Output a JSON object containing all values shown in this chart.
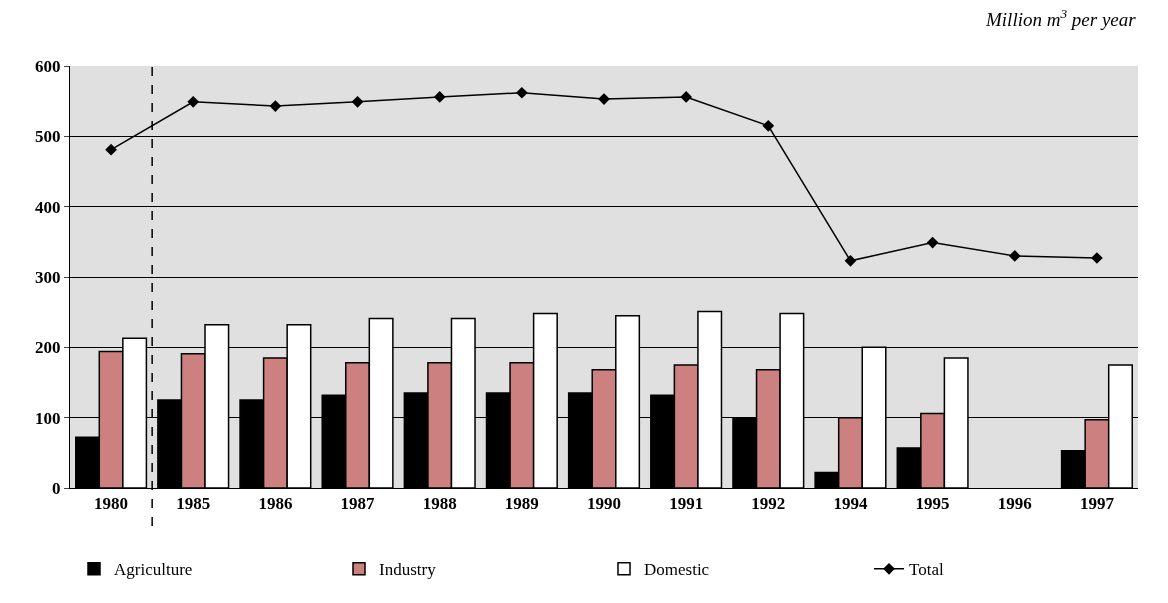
{
  "chart_data": {
    "type": "bar",
    "subtitle": "Million m$^{3}$ per year",
    "categories": [
      "1980",
      "1985",
      "1986",
      "1987",
      "1988",
      "1989",
      "1990",
      "1991",
      "1992",
      "1994",
      "1995",
      "1996",
      "1997"
    ],
    "series": [
      {
        "name": "Agriculture",
        "color": "#000000",
        "values": [
          72,
          125,
          125,
          132,
          135,
          135,
          135,
          132,
          100,
          22,
          57,
          null,
          53
        ]
      },
      {
        "name": "Industry",
        "color": "#cc8080",
        "values": [
          194,
          191,
          185,
          178,
          178,
          178,
          168,
          175,
          168,
          100,
          106,
          null,
          97
        ]
      },
      {
        "name": "Domestic",
        "color": "#ffffff",
        "values": [
          213,
          232,
          232,
          241,
          241,
          248,
          245,
          251,
          248,
          200,
          185,
          null,
          175
        ]
      },
      {
        "name": "Total",
        "type": "line",
        "color": "#000000",
        "marker": "diamond",
        "values": [
          481,
          549,
          543,
          549,
          556,
          562,
          553,
          556,
          515,
          323,
          349,
          330,
          327
        ]
      }
    ],
    "ylim": [
      0,
      600
    ],
    "yticks": [
      0,
      100,
      200,
      300,
      400,
      500,
      600
    ],
    "grid": "y",
    "legend": "bottom",
    "ref_lines": [
      {
        "axis": "x",
        "value": "1980",
        "line_style": "dashed",
        "color": "#000000"
      }
    ]
  }
}
